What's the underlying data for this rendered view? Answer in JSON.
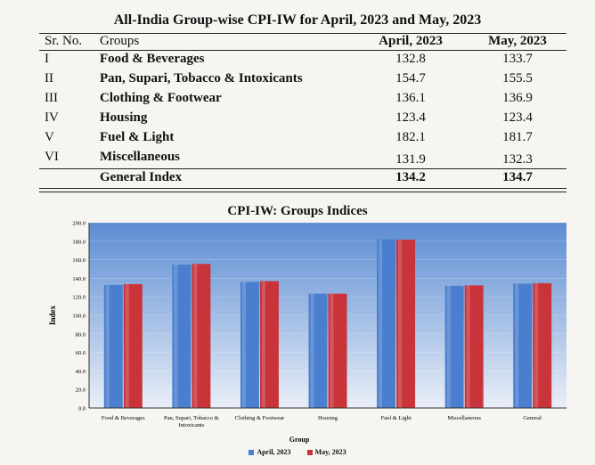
{
  "table": {
    "title": "All-India Group-wise CPI-IW for April, 2023 and May, 2023",
    "headers": {
      "sr": "Sr. No.",
      "group": "Groups",
      "april": "April, 2023",
      "may": "May, 2023"
    },
    "rows": [
      {
        "sr": "I",
        "group": "Food & Beverages",
        "april": "132.8",
        "may": "133.7"
      },
      {
        "sr": "II",
        "group": "Pan, Supari, Tobacco & Intoxicants",
        "april": "154.7",
        "may": "155.5"
      },
      {
        "sr": "III",
        "group": "Clothing & Footwear",
        "april": "136.1",
        "may": "136.9"
      },
      {
        "sr": "IV",
        "group": "Housing",
        "april": "123.4",
        "may": "123.4"
      },
      {
        "sr": "V",
        "group": "Fuel & Light",
        "april": "182.1",
        "may": "181.7"
      },
      {
        "sr": "VI",
        "group": "Miscellaneous",
        "april": "131.9",
        "may": "132.3"
      }
    ],
    "general": {
      "sr": "",
      "group": "General Index",
      "april": "134.2",
      "may": "134.7"
    }
  },
  "chart_data": {
    "type": "bar",
    "title": "CPI-IW: Groups Indices",
    "xlabel": "Group",
    "ylabel": "Index",
    "ylim": [
      0,
      200
    ],
    "yticks": [
      "0.0",
      "20.0",
      "40.0",
      "60.0",
      "80.0",
      "100.0",
      "120.0",
      "140.0",
      "160.0",
      "180.0",
      "200.0"
    ],
    "categories": [
      "Food & Beverages",
      "Pan, Supari, Tobacco & Intoxicants",
      "Clothing & Footwear",
      "Housing",
      "Fuel & Light",
      "Miscellaneous",
      "General"
    ],
    "series": [
      {
        "name": "April, 2023",
        "color": "#4a7fcf",
        "values": [
          132.8,
          154.7,
          136.1,
          123.4,
          182.1,
          131.9,
          134.2
        ]
      },
      {
        "name": "May, 2023",
        "color": "#c8343a",
        "values": [
          133.7,
          155.5,
          136.9,
          123.4,
          181.7,
          132.3,
          134.7
        ]
      }
    ],
    "grid": true,
    "legend": "bottom-center"
  }
}
